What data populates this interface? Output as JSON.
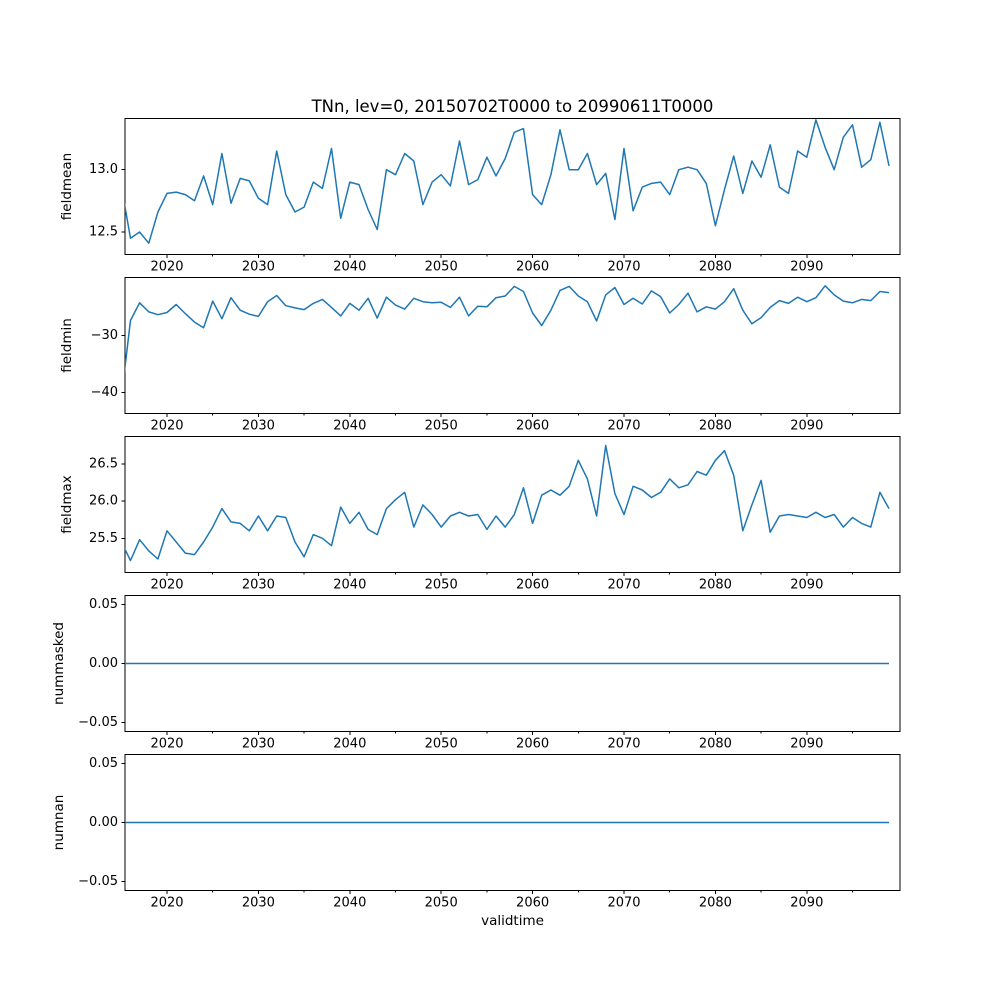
{
  "figure": {
    "title": "TNn, lev=0, 20150702T0000 to 20990611T0000",
    "xlabel": "validtime",
    "background": "#ffffff",
    "line_color": "#1f77b4",
    "axis_color": "#000000"
  },
  "chart_data": {
    "type": "line",
    "title": "TNn, lev=0, 20150702T0000 to 20990611T0000",
    "xlabel": "validtime",
    "legend": "none",
    "grid": false,
    "x": [
      2015,
      2016,
      2017,
      2018,
      2019,
      2020,
      2021,
      2022,
      2023,
      2024,
      2025,
      2026,
      2027,
      2028,
      2029,
      2030,
      2031,
      2032,
      2033,
      2034,
      2035,
      2036,
      2037,
      2038,
      2039,
      2040,
      2041,
      2042,
      2043,
      2044,
      2045,
      2046,
      2047,
      2048,
      2049,
      2050,
      2051,
      2052,
      2053,
      2054,
      2055,
      2056,
      2057,
      2058,
      2059,
      2060,
      2061,
      2062,
      2063,
      2064,
      2065,
      2066,
      2067,
      2068,
      2069,
      2070,
      2071,
      2072,
      2073,
      2074,
      2075,
      2076,
      2077,
      2078,
      2079,
      2080,
      2081,
      2082,
      2083,
      2084,
      2085,
      2086,
      2087,
      2088,
      2089,
      2090,
      2091,
      2092,
      2093,
      2094,
      2095,
      2096,
      2097,
      2098,
      2099
    ],
    "xlim": [
      2015.4,
      2100.2
    ],
    "xticks": [
      2020,
      2030,
      2040,
      2050,
      2060,
      2070,
      2080,
      2090
    ],
    "xticklabels": [
      "2020",
      "2030",
      "2040",
      "2050",
      "2060",
      "2070",
      "2080",
      "2090"
    ],
    "xticks_minor": [
      2025,
      2035,
      2045,
      2055,
      2065,
      2075,
      2085,
      2095
    ],
    "series": [
      {
        "name": "fieldmean",
        "ylabel": "fieldmean",
        "ylim": [
          12.32,
          13.41
        ],
        "yticks": [
          12.5,
          13.0
        ],
        "yticklabels": [
          "12.5",
          "13.0"
        ],
        "values": [
          12.87,
          12.45,
          12.5,
          12.41,
          12.66,
          12.81,
          12.82,
          12.8,
          12.75,
          12.95,
          12.72,
          13.13,
          12.73,
          12.93,
          12.91,
          12.77,
          12.72,
          13.15,
          12.8,
          12.66,
          12.7,
          12.9,
          12.85,
          13.17,
          12.61,
          12.9,
          12.88,
          12.68,
          12.52,
          13.0,
          12.96,
          13.13,
          13.07,
          12.72,
          12.9,
          12.96,
          12.87,
          13.23,
          12.88,
          12.92,
          13.1,
          12.95,
          13.09,
          13.3,
          13.33,
          12.8,
          12.72,
          12.96,
          13.32,
          13.0,
          13.0,
          13.13,
          12.88,
          12.97,
          12.6,
          13.17,
          12.67,
          12.86,
          12.89,
          12.9,
          12.8,
          13.0,
          13.02,
          13.0,
          12.89,
          12.55,
          12.84,
          13.11,
          12.81,
          13.07,
          12.94,
          13.2,
          12.86,
          12.81,
          13.15,
          13.1,
          13.4,
          13.18,
          13.0,
          13.26,
          13.36,
          13.02,
          13.08,
          13.38,
          13.03
        ]
      },
      {
        "name": "fieldmin",
        "ylabel": "fieldmin",
        "ylim": [
          -43.7,
          -19.75
        ],
        "yticks": [
          -40,
          -30
        ],
        "yticklabels": [
          "−40",
          "−30"
        ],
        "values": [
          -41.0,
          -27.3,
          -24.2,
          -25.8,
          -26.3,
          -25.9,
          -24.5,
          -26.1,
          -27.6,
          -28.6,
          -23.9,
          -27.0,
          -23.3,
          -25.5,
          -26.2,
          -26.6,
          -24.0,
          -22.9,
          -24.7,
          -25.1,
          -25.4,
          -24.3,
          -23.6,
          -25.0,
          -26.5,
          -24.3,
          -25.5,
          -23.4,
          -26.9,
          -23.2,
          -24.6,
          -25.3,
          -23.4,
          -24.0,
          -24.2,
          -24.1,
          -25.0,
          -23.2,
          -26.5,
          -24.8,
          -24.9,
          -23.3,
          -23.0,
          -21.3,
          -22.2,
          -26.0,
          -28.2,
          -25.5,
          -22.0,
          -21.3,
          -23.0,
          -24.0,
          -27.4,
          -22.8,
          -21.5,
          -24.5,
          -23.4,
          -24.4,
          -22.1,
          -23.1,
          -26.0,
          -24.5,
          -22.5,
          -25.8,
          -24.9,
          -25.3,
          -24.0,
          -21.7,
          -25.5,
          -27.9,
          -26.8,
          -25.0,
          -23.8,
          -24.3,
          -23.2,
          -24.0,
          -23.3,
          -21.2,
          -22.8,
          -23.9,
          -24.2,
          -23.6,
          -23.8,
          -22.2,
          -22.4
        ]
      },
      {
        "name": "fieldmax",
        "ylabel": "fieldmax",
        "ylim": [
          25.04,
          26.87
        ],
        "yticks": [
          25.5,
          26.0,
          26.5
        ],
        "yticklabels": [
          "25.5",
          "26.0",
          "26.5"
        ],
        "values": [
          25.45,
          25.2,
          25.48,
          25.33,
          25.22,
          25.6,
          25.45,
          25.3,
          25.28,
          25.45,
          25.65,
          25.9,
          25.72,
          25.7,
          25.6,
          25.8,
          25.6,
          25.8,
          25.78,
          25.45,
          25.25,
          25.55,
          25.5,
          25.4,
          25.92,
          25.7,
          25.85,
          25.62,
          25.55,
          25.9,
          26.02,
          26.12,
          25.65,
          25.95,
          25.82,
          25.65,
          25.8,
          25.85,
          25.8,
          25.82,
          25.62,
          25.8,
          25.65,
          25.82,
          26.18,
          25.7,
          26.08,
          26.15,
          26.08,
          26.2,
          26.55,
          26.3,
          25.8,
          26.75,
          26.1,
          25.82,
          26.2,
          26.15,
          26.05,
          26.12,
          26.3,
          26.18,
          26.22,
          26.4,
          26.35,
          26.55,
          26.68,
          26.35,
          25.6,
          25.95,
          26.28,
          25.58,
          25.8,
          25.82,
          25.8,
          25.78,
          25.85,
          25.78,
          25.82,
          25.65,
          25.78,
          25.7,
          25.65,
          26.12,
          25.9
        ]
      },
      {
        "name": "nummasked",
        "ylabel": "nummasked",
        "ylim": [
          -0.0575,
          0.0575
        ],
        "yticks": [
          -0.05,
          0.0,
          0.05
        ],
        "yticklabels": [
          "−0.05",
          "0.00",
          "0.05"
        ],
        "values": [
          0,
          0,
          0,
          0,
          0,
          0,
          0,
          0,
          0,
          0,
          0,
          0,
          0,
          0,
          0,
          0,
          0,
          0,
          0,
          0,
          0,
          0,
          0,
          0,
          0,
          0,
          0,
          0,
          0,
          0,
          0,
          0,
          0,
          0,
          0,
          0,
          0,
          0,
          0,
          0,
          0,
          0,
          0,
          0,
          0,
          0,
          0,
          0,
          0,
          0,
          0,
          0,
          0,
          0,
          0,
          0,
          0,
          0,
          0,
          0,
          0,
          0,
          0,
          0,
          0,
          0,
          0,
          0,
          0,
          0,
          0,
          0,
          0,
          0,
          0,
          0,
          0,
          0,
          0,
          0,
          0,
          0,
          0,
          0,
          0
        ]
      },
      {
        "name": "numnan",
        "ylabel": "numnan",
        "ylim": [
          -0.0575,
          0.0575
        ],
        "yticks": [
          -0.05,
          0.0,
          0.05
        ],
        "yticklabels": [
          "−0.05",
          "0.00",
          "0.05"
        ],
        "values": [
          0,
          0,
          0,
          0,
          0,
          0,
          0,
          0,
          0,
          0,
          0,
          0,
          0,
          0,
          0,
          0,
          0,
          0,
          0,
          0,
          0,
          0,
          0,
          0,
          0,
          0,
          0,
          0,
          0,
          0,
          0,
          0,
          0,
          0,
          0,
          0,
          0,
          0,
          0,
          0,
          0,
          0,
          0,
          0,
          0,
          0,
          0,
          0,
          0,
          0,
          0,
          0,
          0,
          0,
          0,
          0,
          0,
          0,
          0,
          0,
          0,
          0,
          0,
          0,
          0,
          0,
          0,
          0,
          0,
          0,
          0,
          0,
          0,
          0,
          0,
          0,
          0,
          0,
          0,
          0,
          0,
          0,
          0,
          0,
          0
        ]
      }
    ]
  }
}
